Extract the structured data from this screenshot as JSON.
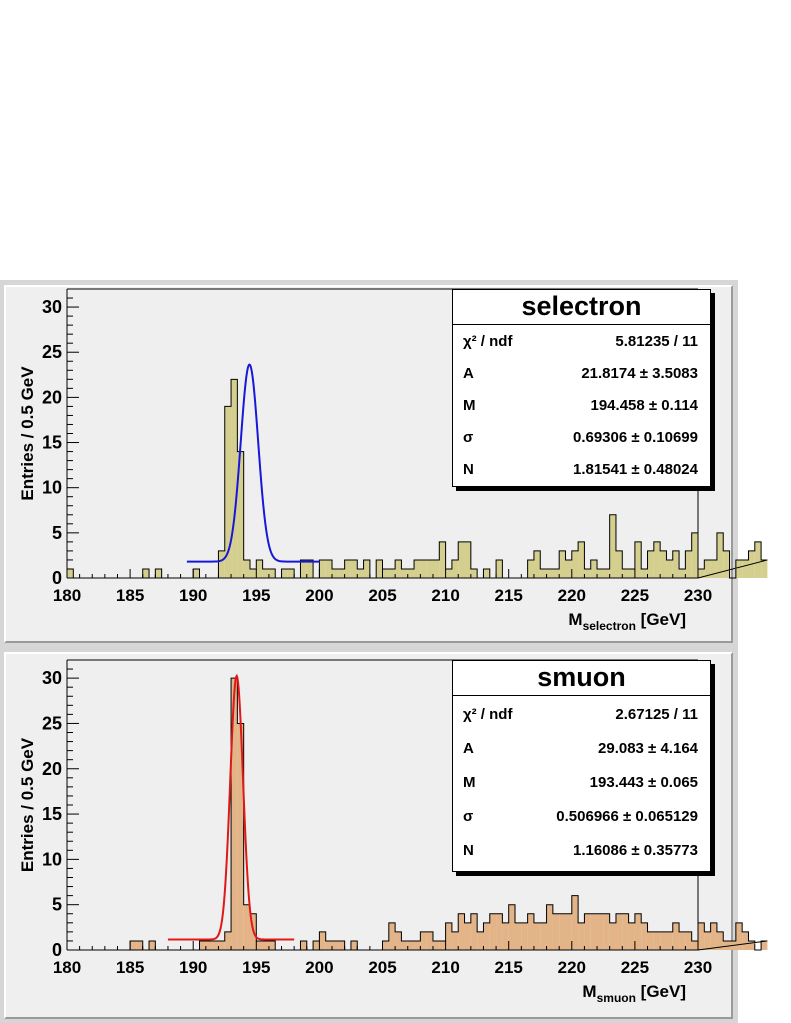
{
  "panels": [
    {
      "title": "selectron",
      "ylabel": "Entries / 0.5 GeV",
      "xlabel_main": "M",
      "xlabel_sub": "selectron",
      "xlabel_unit": "[GeV]",
      "stats": [
        {
          "label": "χ² / ndf",
          "value": "5.81235 / 11"
        },
        {
          "label": "A",
          "value": "21.8174 ± 3.5083"
        },
        {
          "label": "M",
          "value": "194.458 ± 0.114"
        },
        {
          "label": "σ",
          "value": "0.69306 ± 0.10699"
        },
        {
          "label": "N",
          "value": "1.81541 ± 0.48024"
        }
      ]
    },
    {
      "title": "smuon",
      "ylabel": "Entries / 0.5 GeV",
      "xlabel_main": "M",
      "xlabel_sub": "smuon",
      "xlabel_unit": "[GeV]",
      "stats": [
        {
          "label": "χ² / ndf",
          "value": "2.67125 / 11"
        },
        {
          "label": "A",
          "value": "29.083 ± 4.164"
        },
        {
          "label": "M",
          "value": "193.443 ± 0.065"
        },
        {
          "label": "σ",
          "value": "0.506966 ± 0.065129"
        },
        {
          "label": "N",
          "value": "1.16086 ± 0.35773"
        }
      ]
    }
  ],
  "chart_data": [
    {
      "type": "histogram",
      "title": "selectron",
      "xlabel": "M_selectron [GeV]",
      "ylabel": "Entries / 0.5 GeV",
      "xlim": [
        180,
        230
      ],
      "ylim": [
        0,
        32
      ],
      "xticks": [
        180,
        185,
        190,
        195,
        200,
        205,
        210,
        215,
        220,
        225,
        230
      ],
      "yticks": [
        0,
        5,
        10,
        15,
        20,
        25,
        30
      ],
      "bin_width": 0.5,
      "fill_color": "#d4cf8e",
      "fit_color": "#1818d8",
      "fit_range": [
        189.5,
        200
      ],
      "fit": {
        "A": 21.8174,
        "M": 194.458,
        "sigma": 0.69306,
        "N": 1.81541
      },
      "counts": [
        1,
        0,
        0,
        0,
        0,
        0,
        0,
        0,
        0,
        0,
        0,
        0,
        1,
        0,
        1,
        0,
        0,
        0,
        0,
        0,
        1,
        0,
        0,
        0,
        3,
        19,
        22,
        14,
        2,
        1,
        2,
        1,
        1,
        0,
        1,
        1,
        0,
        2,
        2,
        0,
        2,
        2,
        1,
        1,
        2,
        2,
        1,
        2,
        0,
        2,
        1,
        1,
        2,
        1,
        1,
        2,
        2,
        2,
        2,
        4,
        1,
        2,
        4,
        4,
        1,
        0,
        1,
        0,
        2,
        0,
        0,
        0,
        0,
        2,
        3,
        1,
        1,
        1,
        3,
        2,
        3,
        4,
        1,
        2,
        1,
        1,
        7,
        3,
        1,
        1,
        4,
        1,
        3,
        4,
        3,
        2,
        3,
        1,
        3,
        5,
        1,
        2,
        2,
        5,
        3,
        0,
        2,
        2,
        3,
        4,
        2
      ]
    },
    {
      "type": "histogram",
      "title": "smuon",
      "xlabel": "M_smuon [GeV]",
      "ylabel": "Entries / 0.5 GeV",
      "xlim": [
        180,
        230
      ],
      "ylim": [
        0,
        32
      ],
      "xticks": [
        180,
        185,
        190,
        195,
        200,
        205,
        210,
        215,
        220,
        225,
        230
      ],
      "yticks": [
        0,
        5,
        10,
        15,
        20,
        25,
        30
      ],
      "bin_width": 0.5,
      "fill_color": "#e2b487",
      "fit_color": "#e01818",
      "fit_range": [
        188,
        198
      ],
      "fit": {
        "A": 29.083,
        "M": 193.443,
        "sigma": 0.506966,
        "N": 1.16086
      },
      "counts": [
        0,
        0,
        0,
        0,
        0,
        0,
        0,
        0,
        0,
        0,
        1,
        1,
        0,
        1,
        0,
        0,
        0,
        0,
        0,
        0,
        0,
        1,
        1,
        1,
        1,
        2,
        30,
        25,
        5,
        4,
        1,
        1,
        1,
        0,
        0,
        0,
        0,
        1,
        0,
        1,
        2,
        1,
        1,
        1,
        0,
        1,
        0,
        0,
        0,
        0,
        1,
        3,
        2,
        1,
        1,
        1,
        2,
        2,
        1,
        1,
        3,
        2,
        4,
        3,
        4,
        2,
        3,
        4,
        4,
        3,
        5,
        3,
        3,
        4,
        3,
        3,
        5,
        4,
        4,
        4,
        6,
        3,
        4,
        4,
        4,
        4,
        3,
        4,
        4,
        3,
        4,
        3,
        2,
        2,
        2,
        2,
        3,
        2,
        2,
        1,
        3,
        2,
        3,
        2,
        1,
        1,
        3,
        2,
        1,
        0,
        1
      ]
    }
  ]
}
